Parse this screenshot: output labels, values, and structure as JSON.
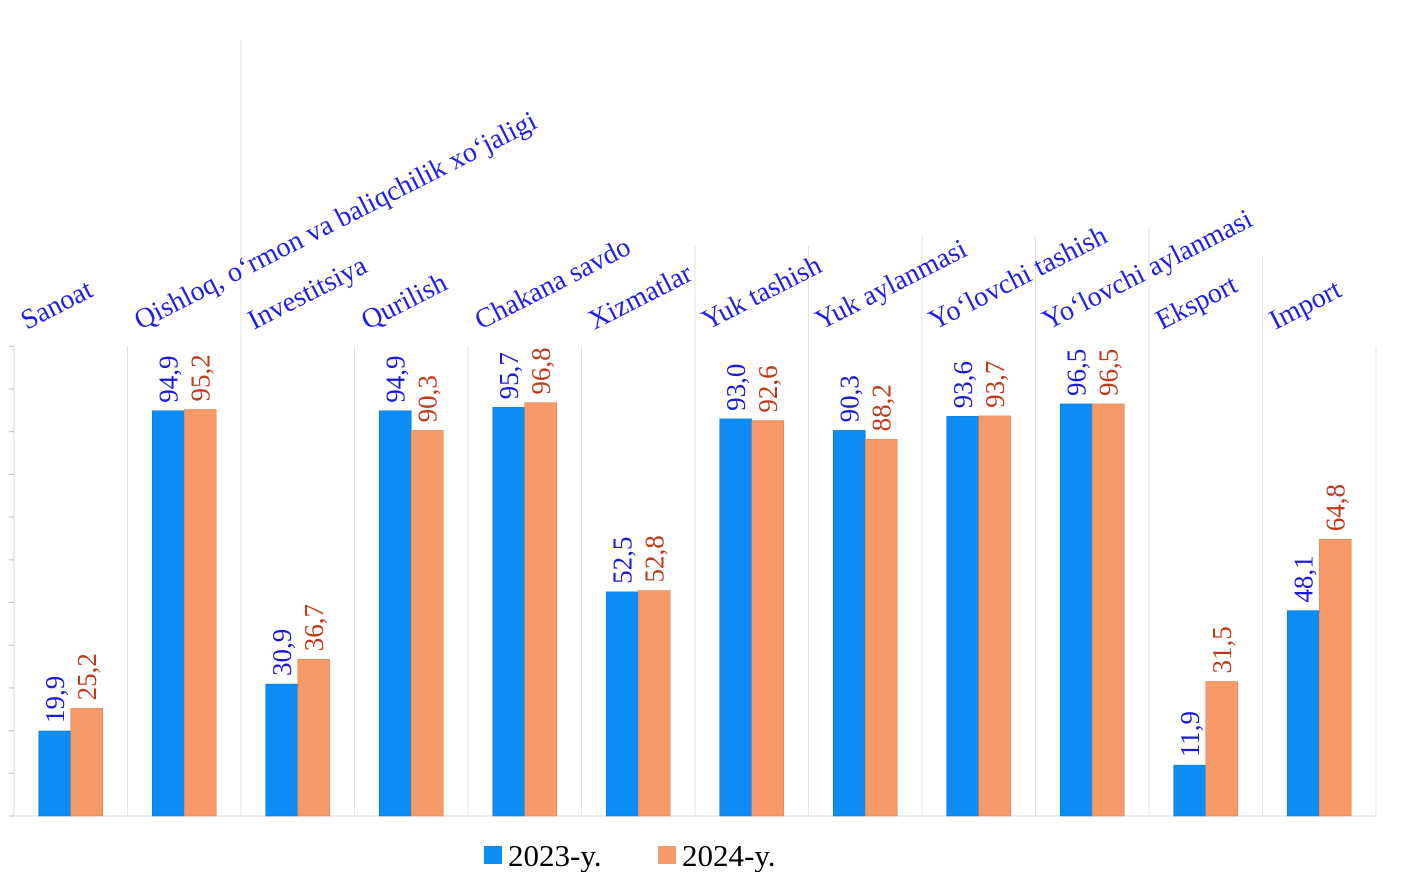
{
  "chart_data": {
    "type": "bar",
    "categories": [
      "Sanoat",
      "Qishloq, o‘rmon va baliqchilik xo‘jaligi",
      "Investitsiya",
      "Qurilish",
      "Chakana savdo",
      "Xizmatlar",
      "Yuk tashish",
      "Yuk aylanmasi",
      "Yo‘lovchi tashish",
      "Yo‘lovchi aylanmasi",
      "Eksport",
      "Import"
    ],
    "series": [
      {
        "name": "2023-y.",
        "color": "#0b8df5",
        "values": [
          19.9,
          94.9,
          30.9,
          94.9,
          95.7,
          52.5,
          93.0,
          90.3,
          93.6,
          96.5,
          11.9,
          48.1
        ],
        "labels": [
          "19,9",
          "94,9",
          "30,9",
          "94,9",
          "95,7",
          "52,5",
          "93,0",
          "90,3",
          "93,6",
          "96,5",
          "11,9",
          "48,1"
        ]
      },
      {
        "name": "2024-y.",
        "color": "#f79a6a",
        "values": [
          25.2,
          95.2,
          36.7,
          90.3,
          96.8,
          52.8,
          92.6,
          88.2,
          93.7,
          96.5,
          31.5,
          64.8
        ],
        "labels": [
          "25,2",
          "95,2",
          "36,7",
          "90,3",
          "96,8",
          "52,8",
          "92,6",
          "88,2",
          "93,7",
          "96,5",
          "31,5",
          "64,8"
        ]
      }
    ],
    "ylim": [
      0,
      110
    ],
    "legend": "bottom",
    "grid": "vertical separators"
  }
}
